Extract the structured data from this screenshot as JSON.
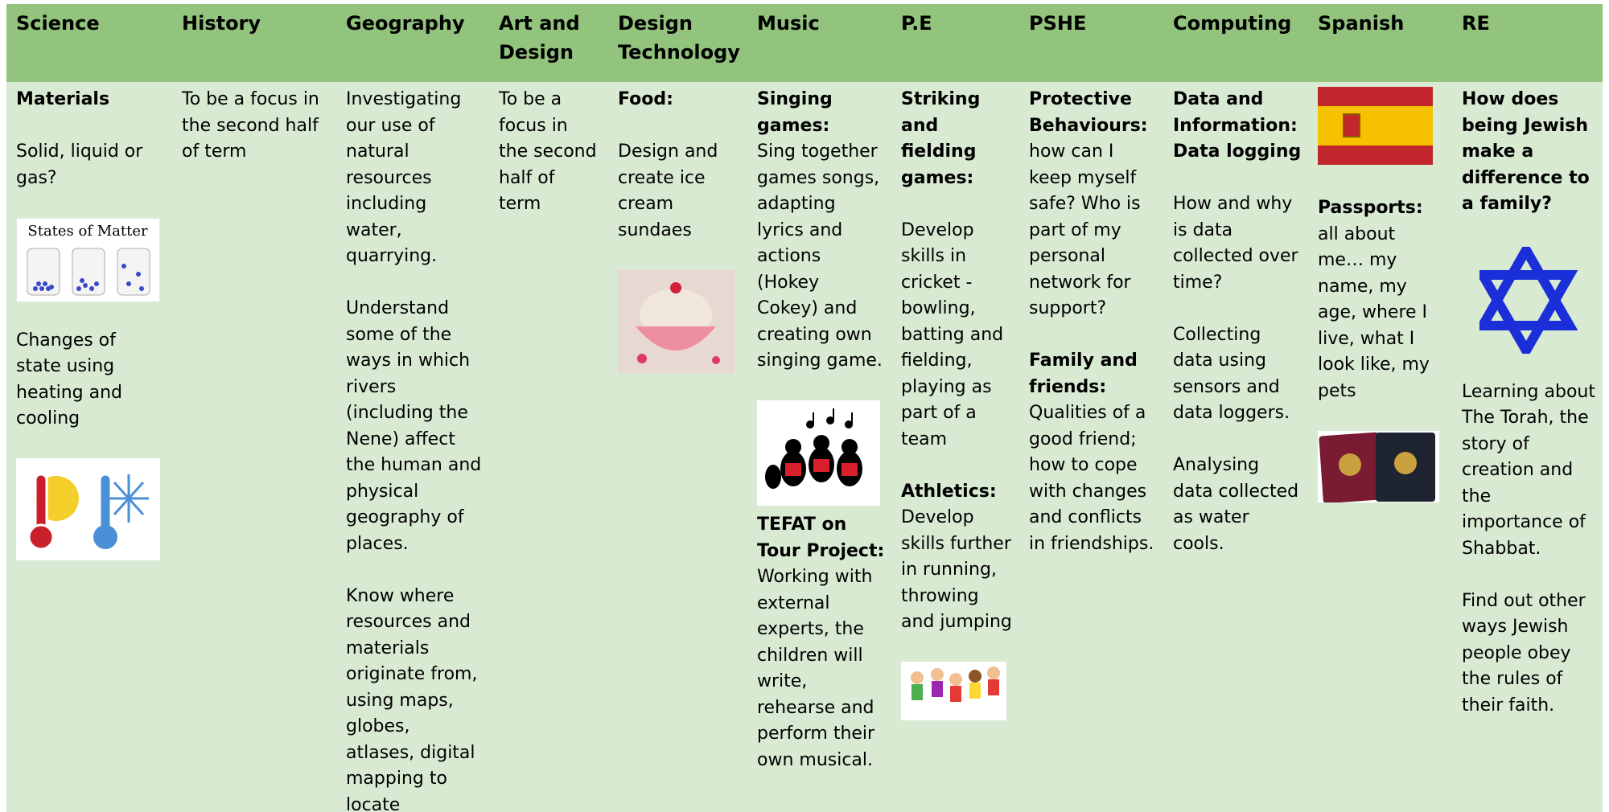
{
  "header_row": [
    "Science",
    "History",
    "Geography",
    "Art and Design",
    "Design Technology",
    "Music",
    "P.E",
    "PSHE",
    "Computing",
    "Spanish",
    "RE"
  ],
  "columns": [
    [
      {
        "bold": "Materials"
      },
      {
        "text": "Solid, liquid or gas?"
      },
      {
        "image_label": "States of Matter"
      },
      {
        "text": "Changes of state using heating and cooling"
      }
    ],
    [
      {
        "text": "To be a focus in the second half of term"
      }
    ],
    [
      {
        "text": "Investigating our use of natural resources including water, quarrying."
      },
      {
        "text": "Understand some of the ways in which rivers (including the Nene) affect the human and physical geography of places."
      },
      {
        "text": "Know where resources and materials originate from, using maps, globes, atlases, digital mapping to locate"
      }
    ],
    [
      {
        "text": "To be a focus in the second half of term"
      }
    ],
    [
      {
        "bold": "Food:"
      },
      {
        "text": "Design and create ice cream sundaes"
      }
    ],
    [
      {
        "bold": "Singing games:",
        "text": "Sing together games songs, adapting lyrics and actions (Hokey Cokey) and creating own singing game."
      },
      {
        "bold": "TEFAT on Tour Project:",
        "text": "Working with external experts, the children will write, rehearse and perform their own musical."
      }
    ],
    [
      {
        "bold": "Striking and fielding games:"
      },
      {
        "text": "Develop skills in cricket - bowling, batting and fielding, playing as part of a team"
      },
      {
        "bold": "Athletics:",
        "text": "Develop skills further in running, throwing and jumping"
      }
    ],
    [
      {
        "bold": "Protective Behaviours:",
        "text": "how can I keep myself safe? Who is part of my personal network for support?"
      },
      {
        "bold": "Family and friends:",
        "text": "Qualities of a good friend; how to cope with changes and conflicts in friendships."
      }
    ],
    [
      {
        "bold": "Data and Information: Data logging"
      },
      {
        "text": "How and why is data collected over time?"
      },
      {
        "text": "Collecting data using sensors and data loggers."
      },
      {
        "text": "Analysing data collected as water cools."
      }
    ],
    [
      {
        "bold": "Passports:",
        "text": "all about me… my name, my age, where I live, what I look like, my pets"
      }
    ],
    [
      {
        "bold": "How does being Jewish make a difference to a family?"
      },
      {
        "text": "Learning about The Torah, the story of creation and the importance of Shabbat."
      },
      {
        "text": "Find out other ways Jewish people obey the rules of their faith."
      }
    ]
  ]
}
